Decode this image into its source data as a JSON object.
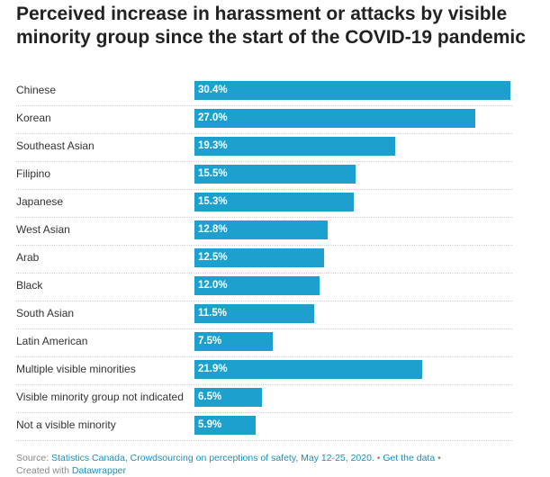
{
  "chart_data": {
    "type": "bar",
    "orientation": "horizontal",
    "title": "Perceived increase in harassment or attacks by visible minority group since the start of the COVID-19 pandemic",
    "categories": [
      "Chinese",
      "Korean",
      "Southeast Asian",
      "Filipino",
      "Japanese",
      "West Asian",
      "Arab",
      "Black",
      "South Asian",
      "Latin American",
      "Multiple visible minorities",
      "Visible minority group not indicated",
      "Not a visible minority"
    ],
    "values": [
      30.4,
      27.0,
      19.3,
      15.5,
      15.3,
      12.8,
      12.5,
      12.0,
      11.5,
      7.5,
      21.9,
      6.5,
      5.9
    ],
    "value_labels": [
      "30.4%",
      "27.0%",
      "19.3%",
      "15.5%",
      "15.3%",
      "12.8%",
      "12.5%",
      "12.0%",
      "11.5%",
      "7.5%",
      "21.9%",
      "6.5%",
      "5.9%"
    ],
    "xlim": [
      0,
      30.4
    ],
    "bar_color": "#1ea0cf",
    "grid": false
  },
  "footer": {
    "source_prefix": "Source:",
    "source_name": "Statistics Canada, Crowdsourcing on perceptions of safety, May 12-25, 2020.",
    "sep1": "•",
    "get_data": "Get the data",
    "sep2": "•",
    "created_with": "Created with",
    "tool": "Datawrapper"
  }
}
